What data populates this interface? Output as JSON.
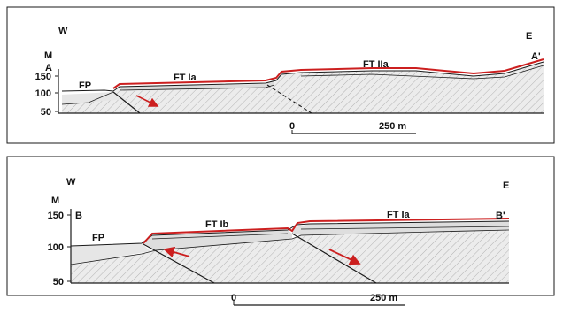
{
  "sections": [
    {
      "west": "W",
      "east": "E",
      "unit": "M",
      "start": "A",
      "end": "A'",
      "y_ticks": [
        "150",
        "100",
        "50"
      ],
      "units_labels": [
        "FP",
        "FT Ia",
        "FT IIa"
      ],
      "scale": {
        "zero": "0",
        "length": "250 m"
      }
    },
    {
      "west": "W",
      "east": "E",
      "unit": "M",
      "start": "B",
      "end": "B'",
      "y_ticks": [
        "150",
        "100",
        "50"
      ],
      "units_labels": [
        "FP",
        "FT Ib",
        "FT Ia"
      ],
      "scale": {
        "zero": "0",
        "length": "250 m"
      }
    }
  ],
  "colors": {
    "surface": "#cc1f1f",
    "outline": "#1a1a1a",
    "fill": "#e6e6e6"
  }
}
